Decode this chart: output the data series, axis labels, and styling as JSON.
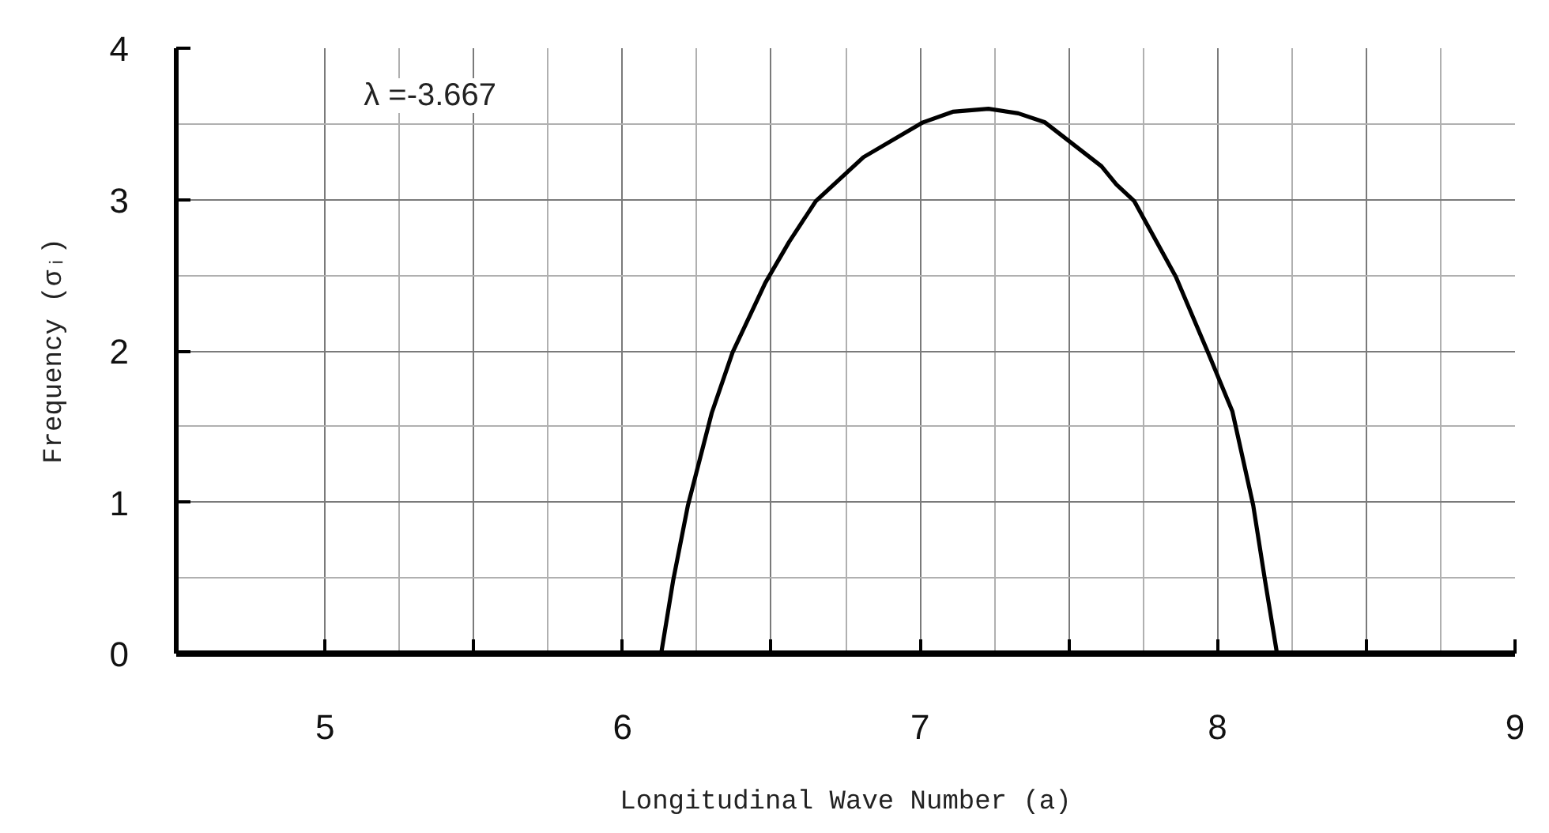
{
  "chart_data": {
    "type": "line",
    "xlabel": "Longitudinal Wave Number (a)",
    "ylabel": "Frequency (σᵢ)",
    "annotations": [
      "λ =-3.667"
    ],
    "x": [
      6.13,
      6.17,
      6.22,
      6.3,
      6.37,
      6.48,
      6.56,
      6.65,
      6.81,
      7.01,
      7.11,
      7.23,
      7.33,
      7.42,
      7.61,
      7.66,
      7.72,
      7.86,
      7.97,
      8.05,
      8.12,
      8.16,
      8.2
    ],
    "series": [
      {
        "color": "#000000",
        "values": [
          0,
          0.48,
          0.98,
          1.59,
          1.99,
          2.45,
          2.72,
          2.99,
          3.28,
          3.51,
          3.58,
          3.6,
          3.57,
          3.51,
          3.22,
          3.1,
          2.99,
          2.49,
          1.98,
          1.6,
          0.98,
          0.48,
          0
        ]
      }
    ],
    "xlim": [
      4.5,
      9
    ],
    "ylim": [
      0,
      4
    ],
    "xticks": [
      5,
      {
        "value": 5.5,
        "label": null
      },
      6,
      {
        "value": 6.5,
        "label": null
      },
      7,
      {
        "value": 7.5,
        "label": null
      },
      8,
      {
        "value": 8.5,
        "label": null
      },
      9
    ],
    "yticks": [
      0,
      1,
      2,
      3,
      4
    ],
    "grid": true,
    "line_style": "solid"
  }
}
